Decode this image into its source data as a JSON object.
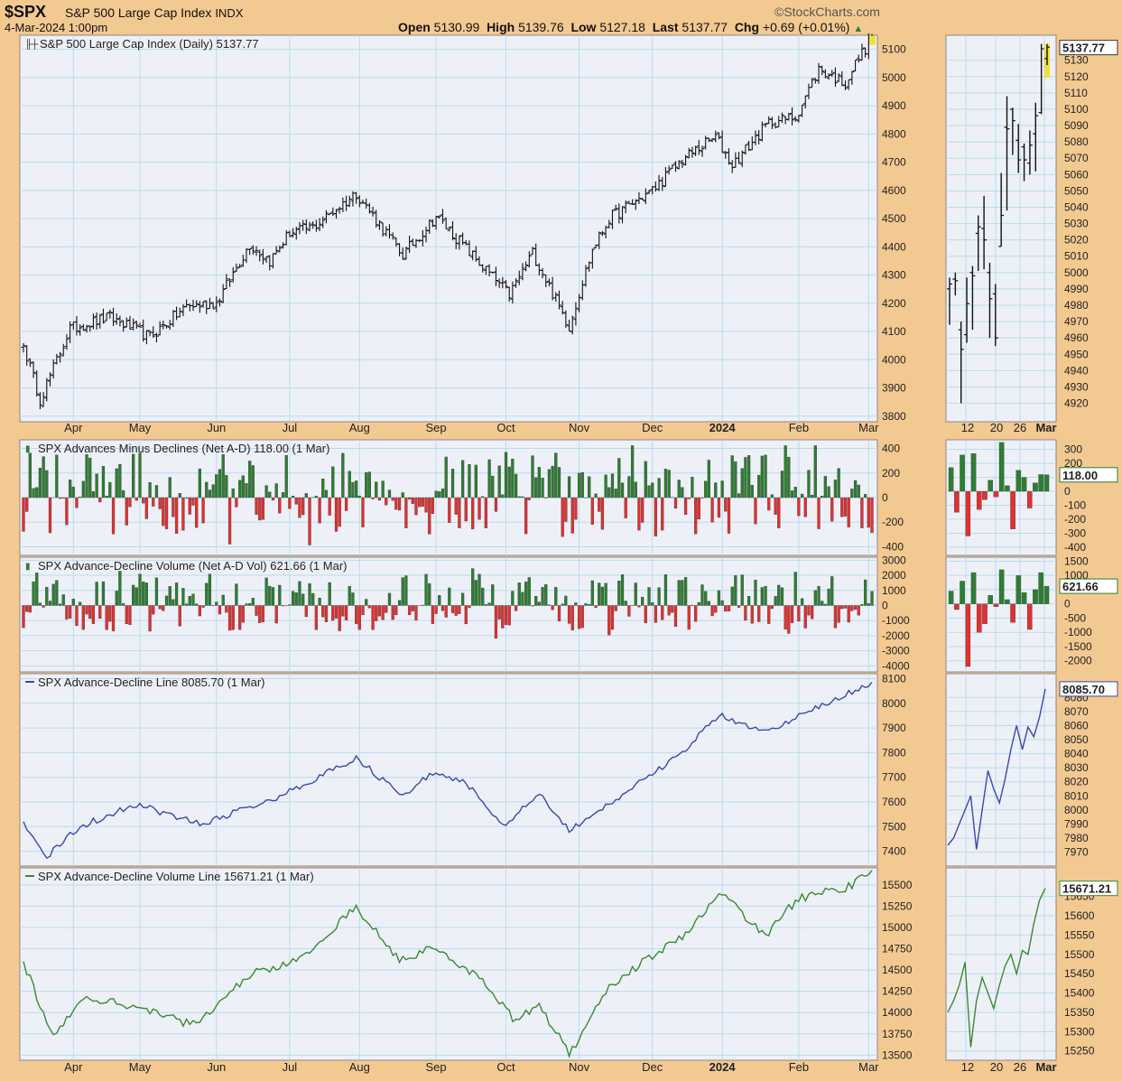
{
  "header": {
    "symbol": "$SPX",
    "name": "S&P 500 Large Cap Index",
    "exchange": "INDX",
    "datetime": "4-Mar-2024 1:00pm",
    "open_label": "Open",
    "open": "5130.99",
    "high_label": "High",
    "high": "5139.76",
    "low_label": "Low",
    "low": "5127.18",
    "last_label": "Last",
    "last": "5137.77",
    "chg_label": "Chg",
    "chg": "+0.69 (+0.01%)",
    "brand": "©StockCharts.com"
  },
  "colors": {
    "background": "#f3c992",
    "panel": "#eef0f8",
    "grid": "#b8dcec",
    "price_bar": "#111111",
    "highlight": "#f0e040",
    "advance": "#2e7d32",
    "decline": "#e03030",
    "ad_line": "#3949ab",
    "ad_volume_line": "#3a8a2e"
  },
  "x_axis": {
    "month_labels": [
      "Apr",
      "May",
      "Jun",
      "Jul",
      "Aug",
      "Sep",
      "Oct",
      "Nov",
      "Dec",
      "2024",
      "Feb",
      "Mar"
    ],
    "zoom_labels": [
      "12",
      "20",
      "26",
      "Mar"
    ]
  },
  "chart_data": [
    {
      "id": "price",
      "type": "ohlc",
      "title": "S&P 500 Large Cap Index (Daily) 5137.77",
      "ylim": [
        3780,
        5150
      ],
      "y_ticks": [
        3800,
        3900,
        4000,
        4100,
        4200,
        4300,
        4400,
        4500,
        4600,
        4700,
        4800,
        4900,
        5000,
        5100
      ],
      "date_range": [
        "2023-03-13",
        "2024-03-04"
      ],
      "close_anchors": {
        "dates": [
          "2023-03-13",
          "2023-03-20",
          "2023-03-31",
          "2023-04-18",
          "2023-05-04",
          "2023-05-19",
          "2023-06-01",
          "2023-06-15",
          "2023-06-23",
          "2023-07-03",
          "2023-07-12",
          "2023-07-31",
          "2023-08-18",
          "2023-09-01",
          "2023-09-21",
          "2023-10-03",
          "2023-10-12",
          "2023-10-27",
          "2023-11-01",
          "2023-11-07",
          "2023-11-14",
          "2023-12-01",
          "2023-12-14",
          "2023-12-28",
          "2024-01-04",
          "2024-01-19",
          "2024-01-31",
          "2024-02-09",
          "2024-02-21",
          "2024-02-27",
          "2024-03-04"
        ],
        "values": [
          4050,
          3860,
          4110,
          4150,
          4080,
          4190,
          4200,
          4410,
          4350,
          4450,
          4470,
          4590,
          4370,
          4510,
          4330,
          4230,
          4380,
          4117,
          4237,
          4390,
          4500,
          4600,
          4710,
          4790,
          4690,
          4840,
          4860,
          5030,
          4980,
          5070,
          5138
        ]
      },
      "zoom": {
        "ylim": [
          4912,
          5142
        ],
        "y_ticks": [
          4920,
          4930,
          4940,
          4950,
          4960,
          4970,
          4980,
          4990,
          5000,
          5010,
          5020,
          5030,
          5040,
          5050,
          5060,
          5070,
          5080,
          5090,
          5100,
          5110,
          5120,
          5130
        ],
        "bars": [
          {
            "o": 4990,
            "h": 4997,
            "l": 4968,
            "c": 4993
          },
          {
            "o": 4996,
            "h": 5000,
            "l": 4986,
            "c": 4995
          },
          {
            "o": 4965,
            "h": 4970,
            "l": 4920,
            "c": 4953
          },
          {
            "o": 4962,
            "h": 4997,
            "l": 4957,
            "c": 4981
          },
          {
            "o": 5000,
            "h": 5004,
            "l": 4965,
            "c": 4998
          },
          {
            "o": 5024,
            "h": 5035,
            "l": 5001,
            "c": 5028
          },
          {
            "o": 5027,
            "h": 5047,
            "l": 5002,
            "c": 5020
          },
          {
            "o": 5000,
            "h": 5006,
            "l": 4960,
            "c": 4984
          },
          {
            "o": 4987,
            "h": 4993,
            "l": 4955,
            "c": 4960
          },
          {
            "o": 5016,
            "h": 5061,
            "l": 5016,
            "c": 5035
          },
          {
            "o": 5089,
            "h": 5108,
            "l": 5038,
            "c": 5088
          },
          {
            "o": 5100,
            "h": 5101,
            "l": 5072,
            "c": 5093
          },
          {
            "o": 5081,
            "h": 5091,
            "l": 5061,
            "c": 5069
          },
          {
            "o": 5077,
            "h": 5079,
            "l": 5056,
            "c": 5069
          },
          {
            "o": 5067,
            "h": 5087,
            "l": 5060,
            "c": 5078
          },
          {
            "o": 5085,
            "h": 5104,
            "l": 5062,
            "c": 5096
          },
          {
            "o": 5098,
            "h": 5140,
            "l": 5097,
            "c": 5137
          },
          {
            "o": 5131,
            "h": 5140,
            "l": 5127,
            "c": 5138
          }
        ]
      },
      "last_label": "5137.77"
    },
    {
      "id": "net-ad",
      "type": "bar",
      "title": "SPX Advances Minus Declines (Net A-D) 118.00 (1 Mar)",
      "ylim": [
        -470,
        470
      ],
      "y_ticks": [
        -400,
        -200,
        0,
        200,
        400
      ],
      "zoom_ylim": [
        -420,
        330
      ],
      "zoom_y_ticks": [
        -400,
        -300,
        -200,
        -100,
        0,
        100,
        200,
        300
      ],
      "zoom_values": [
        170,
        -150,
        260,
        -320,
        270,
        -130,
        -60,
        80,
        -40,
        350,
        40,
        -270,
        150,
        100,
        -120,
        60,
        120,
        118
      ],
      "last_label": "118.00"
    },
    {
      "id": "net-ad-vol",
      "type": "bar",
      "title": "SPX Advance-Decline Volume (Net A-D Vol) 621.66 (1 Mar)",
      "ylim": [
        -4400,
        3200
      ],
      "y_ticks": [
        -4000,
        -3000,
        -2000,
        -1000,
        0,
        1000,
        2000,
        3000
      ],
      "zoom_ylim": [
        -2200,
        1450
      ],
      "zoom_y_ticks": [
        -2000,
        -1500,
        -1000,
        -500,
        0,
        500,
        1000,
        1500
      ],
      "zoom_values": [
        450,
        -200,
        800,
        -2200,
        1100,
        -1000,
        -700,
        300,
        -100,
        1200,
        150,
        -650,
        1000,
        400,
        -900,
        500,
        1100,
        622
      ],
      "last_label": "621.66"
    },
    {
      "id": "ad-line",
      "type": "line",
      "title": "SPX Advance-Decline Line 8085.70 (1 Mar)",
      "ylim": [
        7340,
        8120
      ],
      "y_ticks": [
        7400,
        7500,
        7600,
        7700,
        7800,
        7900,
        8000,
        8100
      ],
      "anchors": {
        "dates": [
          "2023-03-13",
          "2023-03-22",
          "2023-04-05",
          "2023-04-28",
          "2023-05-25",
          "2023-06-22",
          "2023-07-14",
          "2023-07-31",
          "2023-08-18",
          "2023-08-31",
          "2023-09-14",
          "2023-09-29",
          "2023-10-16",
          "2023-10-27",
          "2023-11-17",
          "2023-12-14",
          "2023-12-29",
          "2024-01-05",
          "2024-01-19",
          "2024-02-09",
          "2024-02-29",
          "2024-03-04"
        ],
        "values": [
          7520,
          7380,
          7500,
          7590,
          7510,
          7600,
          7700,
          7780,
          7620,
          7720,
          7680,
          7500,
          7640,
          7480,
          7620,
          7800,
          7950,
          7930,
          7880,
          7990,
          8070,
          8086
        ]
      },
      "zoom_ylim": [
        7964,
        8093
      ],
      "zoom_y_ticks": [
        7970,
        7980,
        7990,
        8000,
        8010,
        8020,
        8030,
        8040,
        8050,
        8060,
        8070,
        8080
      ],
      "zoom_values": [
        7975,
        7980,
        7990,
        8000,
        8010,
        7972,
        8000,
        8028,
        8015,
        8005,
        8022,
        8043,
        8060,
        8043,
        8059,
        8052,
        8066,
        8086
      ],
      "last_label": "8085.70"
    },
    {
      "id": "ad-volume-line",
      "type": "line",
      "title": "SPX Advance-Decline Volume Line 15671.21 (1 Mar)",
      "ylim": [
        13440,
        15700
      ],
      "y_ticks": [
        13500,
        13750,
        14000,
        14250,
        14500,
        14750,
        15000,
        15250,
        15500
      ],
      "anchors": {
        "dates": [
          "2023-03-13",
          "2023-03-24",
          "2023-04-06",
          "2023-04-28",
          "2023-05-24",
          "2023-06-15",
          "2023-07-05",
          "2023-07-31",
          "2023-08-17",
          "2023-09-01",
          "2023-09-21",
          "2023-10-05",
          "2023-10-16",
          "2023-10-27",
          "2023-11-15",
          "2023-12-14",
          "2024-01-01",
          "2024-01-18",
          "2024-02-01",
          "2024-02-21",
          "2024-03-04"
        ],
        "values": [
          14600,
          13700,
          14200,
          14050,
          13850,
          14450,
          14600,
          15250,
          14600,
          14780,
          14350,
          13900,
          14100,
          13500,
          14350,
          14900,
          15400,
          14900,
          15350,
          15450,
          15671
        ]
      },
      "zoom_ylim": [
        15240,
        15710
      ],
      "zoom_y_ticks": [
        15250,
        15300,
        15350,
        15400,
        15450,
        15500,
        15550,
        15600,
        15650
      ],
      "zoom_values": [
        15350,
        15380,
        15420,
        15480,
        15260,
        15380,
        15440,
        15400,
        15360,
        15420,
        15470,
        15500,
        15450,
        15510,
        15500,
        15580,
        15640,
        15671
      ],
      "last_label": "15671.21"
    }
  ]
}
